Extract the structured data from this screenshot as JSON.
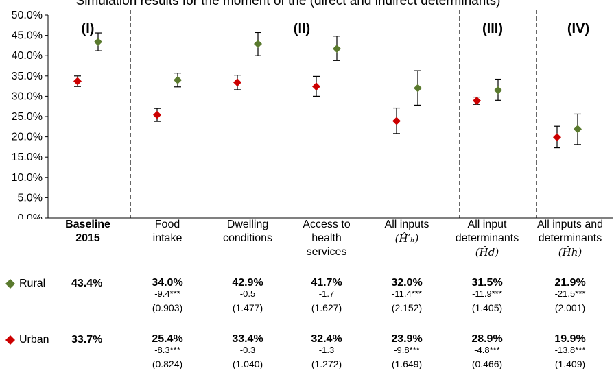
{
  "chart_data": {
    "type": "scatter",
    "title": "Simulation results for the moment of the (direct and indirect determinants)",
    "ylim": [
      0,
      50
    ],
    "yticks": [
      "0.0%",
      "5.0%",
      "10.0%",
      "15.0%",
      "20.0%",
      "25.0%",
      "30.0%",
      "35.0%",
      "40.0%",
      "45.0%",
      "50.0%"
    ],
    "sections": [
      "(I)",
      "(II)",
      "(III)",
      "(IV)"
    ],
    "categories": [
      {
        "line1": "Baseline",
        "line2": "2015",
        "line3": ""
      },
      {
        "line1": "Food",
        "line2": "intake",
        "line3": ""
      },
      {
        "line1": "Dwelling",
        "line2": "conditions",
        "line3": ""
      },
      {
        "line1": "Access to",
        "line2": "health",
        "line3": "services"
      },
      {
        "line1": "All inputs",
        "line2": "(Ĥ′ₕ)",
        "line3": ""
      },
      {
        "line1": "All input",
        "line2": "determinants",
        "line3": "(Ĥd)"
      },
      {
        "line1": "All inputs and",
        "line2": "determinants",
        "line3": "(Ĥh)"
      }
    ],
    "series": [
      {
        "name": "Rural",
        "color": "#5a7a2e",
        "values": [
          43.4,
          34.0,
          42.9,
          41.7,
          32.0,
          31.5,
          21.9
        ],
        "err_low": [
          41.2,
          32.3,
          40.0,
          38.8,
          27.8,
          29.0,
          18.1
        ],
        "err_high": [
          45.6,
          35.7,
          45.7,
          44.8,
          36.3,
          34.2,
          25.6
        ],
        "labels": [
          "43.4%",
          "34.0%",
          "42.9%",
          "41.7%",
          "32.0%",
          "31.5%",
          "21.9%"
        ],
        "diffs": [
          "",
          "-9.4***",
          "-0.5",
          "-1.7",
          "-11.4***",
          "-11.9***",
          "-21.5***"
        ],
        "se": [
          "",
          "(0.903)",
          "(1.477)",
          "(1.627)",
          "(2.152)",
          "(1.405)",
          "(2.001)"
        ]
      },
      {
        "name": "Urban",
        "color": "#cc0000",
        "values": [
          33.7,
          25.4,
          33.4,
          32.4,
          23.9,
          28.9,
          19.9
        ],
        "err_low": [
          32.4,
          23.8,
          31.6,
          30.0,
          20.8,
          28.0,
          17.3
        ],
        "err_high": [
          35.0,
          27.0,
          35.2,
          34.9,
          27.1,
          29.8,
          22.6
        ],
        "labels": [
          "33.7%",
          "25.4%",
          "33.4%",
          "32.4%",
          "23.9%",
          "28.9%",
          "19.9%"
        ],
        "diffs": [
          "",
          "-8.3***",
          "-0.3",
          "-1.3",
          "-9.8***",
          "-4.8***",
          "-13.8***"
        ],
        "se": [
          "",
          "(0.824)",
          "(1.040)",
          "(1.272)",
          "(1.649)",
          "(0.466)",
          "(1.409)"
        ]
      }
    ]
  }
}
